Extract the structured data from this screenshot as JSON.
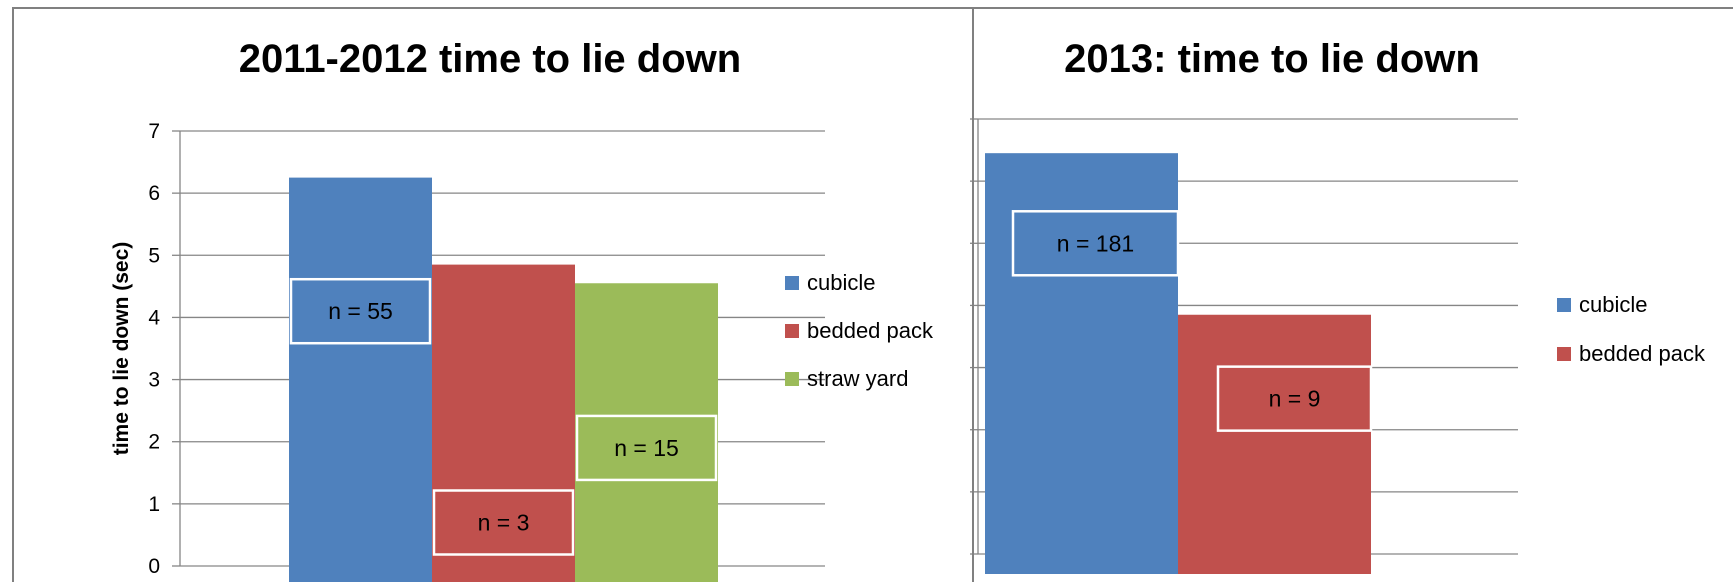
{
  "chart_data": [
    {
      "type": "bar",
      "title": "2011-2012 time to lie down",
      "ylabel": "time to lie down (sec)",
      "ylim": [
        0,
        7
      ],
      "yticks": [
        0,
        1,
        2,
        3,
        4,
        5,
        6,
        7
      ],
      "grid": true,
      "legend_position": "right",
      "series": [
        {
          "name": "cubicle",
          "value": 6.25,
          "color": "#4F81BD",
          "annotation": "n = 55",
          "annotation_y": 4.1
        },
        {
          "name": "bedded pack",
          "value": 4.85,
          "color": "#C0504D",
          "annotation": "n = 3",
          "annotation_y": 0.7
        },
        {
          "name": "straw yard",
          "value": 4.55,
          "color": "#9BBB59",
          "annotation": "n = 15",
          "annotation_y": 1.9
        }
      ]
    },
    {
      "type": "bar",
      "title": "2013: time to lie down",
      "ylim": [
        0,
        7
      ],
      "grid": true,
      "legend_position": "right",
      "series": [
        {
          "name": "cubicle",
          "value": 6.45,
          "color": "#4F81BD",
          "annotation": "n = 181",
          "annotation_y": 5.0
        },
        {
          "name": "bedded pack",
          "value": 3.85,
          "color": "#C0504D",
          "annotation": "n = 9",
          "annotation_y": 2.5
        }
      ]
    }
  ]
}
